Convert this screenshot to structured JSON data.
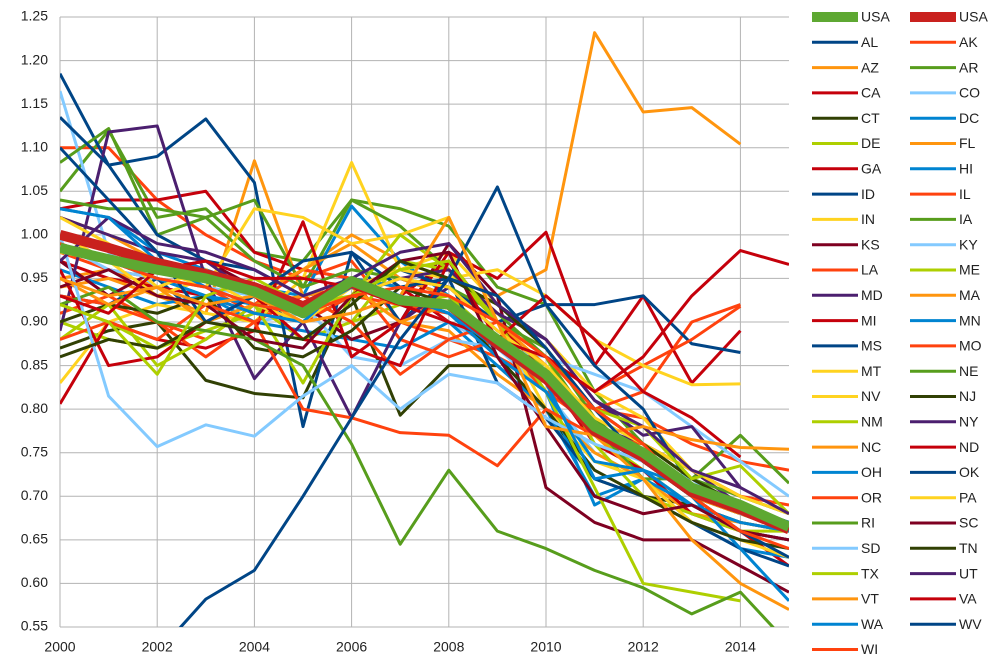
{
  "chart_data": {
    "type": "line",
    "legend": "right",
    "grid": true,
    "x": [
      2000,
      2001,
      2002,
      2003,
      2004,
      2005,
      2006,
      2007,
      2008,
      2009,
      2010,
      2011,
      2012,
      2013,
      2014,
      2015
    ],
    "xlim": [
      2000,
      2015
    ],
    "xticks": [
      2000,
      2002,
      2004,
      2006,
      2008,
      2010,
      2012,
      2014
    ],
    "ylim": [
      0.55,
      1.25
    ],
    "yticks": [
      0.55,
      {
        "value": 0.6,
        "label": "0.60"
      },
      0.65,
      {
        "value": 0.7,
        "label": "0.70"
      },
      0.75,
      {
        "value": 0.8,
        "label": "0.80"
      },
      0.85,
      {
        "value": 0.9,
        "label": "0.90"
      },
      0.95,
      {
        "value": 1,
        "label": "1.00"
      },
      1.05,
      {
        "value": 1.1,
        "label": "1.10"
      },
      1.15,
      {
        "value": 1.2,
        "label": "1.20"
      },
      1.25
    ],
    "series": [
      {
        "name": "USA",
        "color": "#5ea832",
        "values": [
          0.985,
          0.972,
          0.96,
          0.95,
          0.935,
          0.91,
          0.947,
          0.925,
          0.92,
          0.88,
          0.84,
          0.78,
          0.75,
          0.71,
          0.69,
          0.665
        ]
      },
      {
        "name": "USA",
        "color": "#c9211e",
        "values": [
          1.0,
          0.985,
          0.968,
          0.955,
          0.94,
          0.918,
          0.945,
          0.925,
          0.92,
          0.875,
          0.835,
          0.775,
          0.745,
          0.705,
          0.685,
          0.662
        ]
      },
      {
        "name": "AL",
        "color": "#004586",
        "values": [
          0.93,
          0.92,
          0.95,
          0.9,
          0.92,
          0.9,
          0.93,
          0.95,
          0.93,
          0.88,
          0.83,
          0.77,
          0.74,
          0.7,
          0.68,
          0.66
        ]
      },
      {
        "name": "AK",
        "color": "#ff420e",
        "values": [
          1.1,
          1.1,
          1.04,
          1.0,
          0.97,
          0.95,
          0.97,
          0.9,
          0.88,
          0.86,
          0.83,
          0.8,
          0.79,
          0.76,
          0.74,
          0.73
        ]
      },
      {
        "name": "AZ",
        "color": "#ff950e",
        "values": [
          0.95,
          0.96,
          0.94,
          0.92,
          0.93,
          0.96,
          1.0,
          0.97,
          0.95,
          0.93,
          0.96,
          1.232,
          1.141,
          1.146,
          1.104,
          null
        ]
      },
      {
        "name": "AR",
        "color": "#579d1c",
        "values": [
          1.05,
          1.12,
          1.02,
          1.03,
          0.98,
          0.97,
          1.04,
          1.03,
          1.01,
          0.94,
          0.92,
          0.82,
          0.76,
          0.72,
          0.77,
          0.715
        ]
      },
      {
        "name": "CA",
        "color": "#c5000b",
        "values": [
          0.97,
          0.95,
          0.94,
          0.93,
          0.91,
          0.92,
          0.95,
          0.94,
          0.9,
          0.87,
          0.84,
          0.78,
          0.74,
          0.7,
          0.66,
          0.62
        ]
      },
      {
        "name": "CO",
        "color": "#83caff",
        "values": [
          1.165,
          0.98,
          0.94,
          0.92,
          0.9,
          0.91,
          0.93,
          0.92,
          0.9,
          0.87,
          0.82,
          0.75,
          0.72,
          0.69,
          0.67,
          0.66
        ]
      },
      {
        "name": "CT",
        "color": "#314004",
        "values": [
          0.87,
          0.89,
          0.9,
          0.833,
          0.818,
          0.813,
          0.93,
          0.793,
          0.85,
          0.85,
          0.8,
          0.72,
          0.7,
          0.69,
          0.67,
          0.66
        ]
      },
      {
        "name": "DC",
        "color": "#0084d1",
        "values": [
          1.03,
          1.02,
          0.98,
          0.96,
          0.94,
          0.93,
          1.033,
          0.97,
          0.93,
          0.86,
          0.82,
          0.69,
          0.72,
          0.67,
          0.64,
          0.63
        ]
      },
      {
        "name": "DE",
        "color": "#aecf00",
        "values": [
          0.92,
          0.9,
          0.87,
          0.9,
          0.92,
          0.88,
          0.9,
          0.92,
          0.93,
          0.88,
          0.85,
          0.77,
          0.73,
          0.69,
          0.66,
          0.65
        ]
      },
      {
        "name": "FL",
        "color": "#ff950e",
        "values": [
          0.94,
          0.95,
          0.93,
          0.91,
          1.085,
          0.93,
          0.94,
          0.9,
          0.89,
          0.84,
          0.8,
          0.75,
          0.72,
          0.68,
          0.67,
          0.66
        ]
      },
      {
        "name": "GA",
        "color": "#c5000b",
        "values": [
          1.03,
          1.04,
          1.04,
          1.05,
          0.98,
          0.96,
          0.95,
          0.93,
          0.97,
          0.9,
          0.84,
          0.76,
          0.73,
          0.68,
          0.66,
          0.65
        ]
      },
      {
        "name": "HI",
        "color": "#0084d1",
        "values": [
          0.96,
          0.94,
          0.92,
          0.93,
          0.9,
          0.89,
          0.88,
          0.87,
          0.9,
          0.85,
          0.8,
          0.7,
          0.72,
          0.69,
          0.66,
          0.65
        ]
      },
      {
        "name": "ID",
        "color": "#004586",
        "values": [
          1.185,
          1.08,
          1.09,
          1.133,
          1.06,
          0.78,
          0.98,
          0.9,
          0.95,
          0.83,
          0.79,
          0.72,
          0.7,
          0.67,
          0.64,
          0.62
        ]
      },
      {
        "name": "IL",
        "color": "#ff420e",
        "values": [
          0.98,
          0.96,
          0.95,
          0.94,
          0.91,
          0.9,
          0.93,
          0.92,
          0.91,
          0.86,
          0.82,
          0.78,
          0.74,
          0.7,
          0.68,
          0.67
        ]
      },
      {
        "name": "IN",
        "color": "#ffd320",
        "values": [
          0.83,
          0.9,
          0.92,
          0.91,
          0.9,
          0.95,
          1.083,
          0.96,
          0.98,
          0.92,
          0.88,
          0.82,
          0.79,
          0.73,
          0.7,
          0.68
        ]
      },
      {
        "name": "IA",
        "color": "#579d1c",
        "values": [
          1.083,
          1.122,
          1.0,
          1.02,
          1.04,
          0.94,
          1.04,
          1.01,
          0.96,
          0.9,
          0.87,
          0.79,
          0.74,
          0.7,
          0.68,
          0.67
        ]
      },
      {
        "name": "KS",
        "color": "#7e0021",
        "values": [
          0.97,
          0.93,
          0.96,
          0.97,
          0.94,
          0.92,
          0.88,
          0.9,
          0.99,
          0.93,
          0.71,
          0.67,
          0.65,
          0.65,
          0.62,
          0.59
        ]
      },
      {
        "name": "KY",
        "color": "#83caff",
        "values": [
          0.99,
          0.96,
          0.95,
          0.94,
          0.93,
          0.92,
          0.86,
          0.85,
          0.88,
          0.87,
          0.86,
          0.84,
          0.82,
          0.78,
          0.74,
          0.7
        ]
      },
      {
        "name": "LA",
        "color": "#ff420e",
        "values": [
          0.91,
          0.93,
          0.9,
          0.88,
          0.92,
          0.96,
          0.95,
          0.88,
          0.86,
          0.88,
          0.82,
          0.8,
          0.82,
          0.9,
          0.92,
          null
        ]
      },
      {
        "name": "ME",
        "color": "#aecf00",
        "values": [
          0.9,
          0.88,
          0.87,
          0.89,
          0.91,
          0.93,
          0.9,
          0.97,
          0.96,
          0.9,
          0.86,
          0.76,
          0.7,
          0.68,
          0.66,
          0.66
        ]
      },
      {
        "name": "MD",
        "color": "#4b1f6f",
        "values": [
          0.89,
          1.118,
          1.125,
          0.95,
          0.835,
          0.9,
          0.79,
          0.9,
          0.94,
          0.89,
          0.85,
          0.78,
          0.76,
          0.73,
          0.69,
          0.67
        ]
      },
      {
        "name": "MA",
        "color": "#ff950e",
        "values": [
          1.02,
          1.0,
          0.97,
          0.95,
          0.93,
          0.96,
          0.99,
          0.95,
          0.93,
          0.9,
          0.85,
          0.78,
          0.74,
          0.7,
          0.68,
          0.66
        ]
      },
      {
        "name": "MI",
        "color": "#c5000b",
        "values": [
          0.806,
          0.9,
          0.88,
          0.87,
          0.89,
          1.015,
          0.86,
          0.9,
          0.98,
          0.95,
          1.003,
          0.85,
          0.93,
          0.83,
          0.89,
          null
        ]
      },
      {
        "name": "MN",
        "color": "#0084d1",
        "values": [
          1.0,
          0.97,
          0.95,
          0.93,
          0.92,
          0.9,
          0.95,
          0.94,
          0.92,
          0.88,
          0.84,
          0.78,
          0.75,
          0.7,
          0.64,
          0.58
        ]
      },
      {
        "name": "MS",
        "color": "#004586",
        "values": [
          1.135,
          1.08,
          1.0,
          0.97,
          0.96,
          0.93,
          0.94,
          0.96,
          0.94,
          0.9,
          0.92,
          0.92,
          0.93,
          0.875,
          0.865,
          null
        ]
      },
      {
        "name": "MO",
        "color": "#ff420e",
        "values": [
          0.93,
          0.92,
          0.9,
          0.86,
          0.9,
          0.93,
          0.9,
          0.84,
          0.88,
          0.9,
          0.86,
          0.82,
          0.85,
          0.88,
          0.918,
          null
        ]
      },
      {
        "name": "MT",
        "color": "#ffd320",
        "values": [
          0.98,
          0.97,
          0.93,
          0.95,
          0.92,
          0.9,
          0.94,
          0.96,
          0.95,
          0.96,
          0.93,
          0.88,
          0.85,
          0.828,
          0.829,
          null
        ]
      },
      {
        "name": "NE",
        "color": "#579d1c",
        "values": [
          1.04,
          1.03,
          1.03,
          1.02,
          0.97,
          0.94,
          0.96,
          0.95,
          0.94,
          0.91,
          0.86,
          0.78,
          0.72,
          0.72,
          0.7,
          0.68
        ]
      },
      {
        "name": "NV",
        "color": "#ffd320",
        "values": [
          1.0,
          0.97,
          0.96,
          0.94,
          1.03,
          1.02,
          0.99,
          1.0,
          1.02,
          0.9,
          0.8,
          0.74,
          0.72,
          0.67,
          0.65,
          0.63
        ]
      },
      {
        "name": "NJ",
        "color": "#314004",
        "values": [
          0.9,
          0.92,
          0.91,
          0.93,
          0.87,
          0.86,
          0.89,
          0.94,
          0.92,
          0.86,
          0.8,
          0.73,
          0.7,
          0.67,
          0.65,
          0.64
        ]
      },
      {
        "name": "NM",
        "color": "#aecf00",
        "values": [
          0.88,
          0.92,
          0.85,
          0.88,
          0.92,
          0.83,
          0.93,
          1.0,
          0.96,
          0.9,
          0.82,
          0.71,
          0.6,
          0.59,
          0.58,
          null
        ]
      },
      {
        "name": "NY",
        "color": "#4b1f6f",
        "values": [
          1.02,
          1.0,
          0.98,
          0.97,
          0.93,
          0.91,
          0.93,
          0.95,
          0.96,
          0.91,
          0.88,
          0.81,
          0.77,
          0.78,
          0.71,
          null
        ]
      },
      {
        "name": "NC",
        "color": "#ff950e",
        "values": [
          0.95,
          0.92,
          0.94,
          0.9,
          0.92,
          0.93,
          0.94,
          0.9,
          0.92,
          0.88,
          0.84,
          0.77,
          0.72,
          0.65,
          0.6,
          0.57
        ]
      },
      {
        "name": "ND",
        "color": "#c5000b",
        "values": [
          0.96,
          0.85,
          0.86,
          0.9,
          0.93,
          0.88,
          0.87,
          0.85,
          0.97,
          0.88,
          0.93,
          0.88,
          0.82,
          0.79,
          0.745,
          null
        ]
      },
      {
        "name": "OH",
        "color": "#0084d1",
        "values": [
          0.99,
          0.97,
          0.95,
          0.93,
          0.91,
          0.9,
          0.95,
          0.93,
          0.91,
          0.86,
          0.82,
          0.74,
          0.73,
          0.69,
          0.67,
          0.66
        ]
      },
      {
        "name": "OK",
        "color": "#004586",
        "values": [
          1.1,
          1.04,
          0.98,
          0.9,
          0.93,
          0.97,
          0.98,
          0.94,
          0.95,
          1.055,
          0.92,
          0.85,
          0.8,
          0.71,
          0.69,
          0.67
        ]
      },
      {
        "name": "OR",
        "color": "#ff420e",
        "values": [
          0.88,
          0.9,
          0.88,
          0.92,
          0.9,
          0.8,
          0.79,
          0.773,
          0.77,
          0.735,
          0.8,
          0.77,
          0.76,
          0.73,
          0.7,
          0.69
        ]
      },
      {
        "name": "PA",
        "color": "#ffd320",
        "values": [
          1.02,
          0.99,
          0.94,
          0.96,
          0.93,
          0.91,
          0.93,
          0.95,
          0.94,
          0.89,
          0.85,
          0.79,
          0.76,
          0.73,
          0.7,
          0.68
        ]
      },
      {
        "name": "RI",
        "color": "#579d1c",
        "values": [
          0.92,
          0.94,
          0.9,
          0.89,
          0.88,
          0.85,
          0.76,
          0.645,
          0.73,
          0.66,
          0.64,
          0.615,
          0.595,
          0.565,
          0.59,
          0.53
        ]
      },
      {
        "name": "SC",
        "color": "#7e0021",
        "values": [
          0.94,
          0.96,
          0.93,
          0.92,
          0.88,
          0.87,
          0.93,
          0.97,
          0.98,
          0.86,
          0.78,
          0.7,
          0.68,
          0.69,
          0.66,
          0.65
        ]
      },
      {
        "name": "SD",
        "color": "#83caff",
        "values": [
          1.0,
          0.815,
          0.757,
          0.782,
          0.769,
          0.815,
          0.85,
          0.8,
          0.84,
          0.83,
          0.79,
          0.76,
          0.74,
          0.72,
          0.68,
          0.67
        ]
      },
      {
        "name": "TN",
        "color": "#314004",
        "values": [
          0.86,
          0.88,
          0.87,
          0.9,
          0.89,
          0.88,
          0.92,
          0.97,
          0.95,
          0.92,
          0.87,
          0.8,
          0.76,
          0.72,
          0.69,
          0.67
        ]
      },
      {
        "name": "TX",
        "color": "#aecf00",
        "values": [
          0.92,
          0.9,
          0.84,
          0.93,
          0.95,
          0.92,
          0.93,
          0.96,
          0.97,
          0.9,
          0.86,
          0.8,
          0.78,
          0.72,
          0.735,
          0.68
        ]
      },
      {
        "name": "UT",
        "color": "#4b1f6f",
        "values": [
          0.97,
          1.02,
          0.99,
          0.98,
          0.96,
          0.93,
          0.95,
          0.98,
          0.99,
          0.92,
          0.88,
          0.81,
          0.78,
          0.73,
          0.71,
          0.68
        ]
      },
      {
        "name": "VT",
        "color": "#ff950e",
        "values": [
          0.95,
          0.93,
          0.94,
          0.92,
          0.93,
          0.9,
          0.91,
          0.93,
          1.02,
          0.9,
          0.78,
          0.77,
          0.78,
          0.765,
          0.756,
          0.754
        ]
      },
      {
        "name": "VA",
        "color": "#c5000b",
        "values": [
          0.93,
          0.91,
          0.96,
          0.97,
          0.95,
          0.95,
          0.94,
          0.92,
          0.9,
          0.88,
          0.86,
          0.82,
          0.86,
          0.93,
          0.982,
          0.966
        ]
      },
      {
        "name": "WA",
        "color": "#0084d1",
        "values": [
          1.03,
          1.02,
          0.97,
          0.94,
          0.92,
          0.91,
          0.94,
          0.93,
          0.91,
          0.87,
          0.83,
          0.72,
          0.73,
          0.71,
          0.69,
          0.67
        ]
      },
      {
        "name": "WV",
        "color": "#004586",
        "values": [
          null,
          null,
          0.52,
          0.582,
          0.615,
          0.7,
          0.79,
          0.88,
          0.95,
          0.93,
          0.87,
          0.8,
          0.74,
          0.7,
          0.66,
          0.63
        ]
      },
      {
        "name": "WI",
        "color": "#ff420e",
        "values": [
          0.99,
          0.97,
          0.95,
          0.94,
          0.92,
          0.91,
          0.93,
          0.94,
          0.93,
          0.9,
          0.86,
          0.8,
          0.76,
          0.7,
          0.66,
          0.64
        ]
      }
    ]
  }
}
